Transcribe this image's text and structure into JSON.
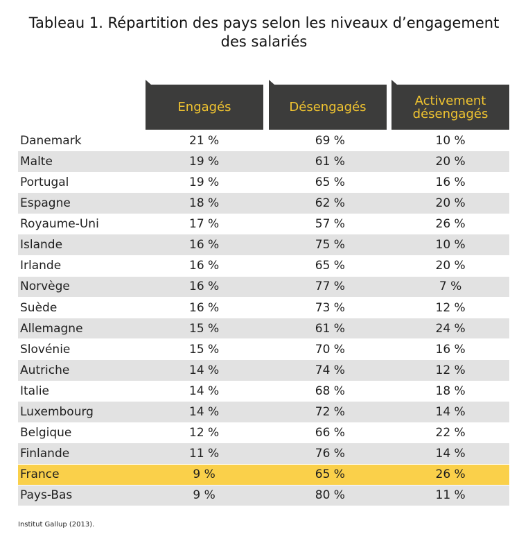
{
  "title_line1": "Tableau 1. Répartition des pays selon les niveaux d’engagement",
  "title_line2": "des salariés",
  "headers": {
    "engaged": "Engagés",
    "disengaged": "Désengagés",
    "active_line1": "Activement",
    "active_line2": "désengagés"
  },
  "colors": {
    "header_bg": "#3c3c3b",
    "header_text": "#f2c530",
    "row_alt": "#e2e2e2",
    "highlight": "#fad04a"
  },
  "rows": [
    {
      "country": "Danemark",
      "engaged": "21 %",
      "disengaged": "69 %",
      "active": "10 %"
    },
    {
      "country": "Malte",
      "engaged": "19 %",
      "disengaged": "61 %",
      "active": "20 %"
    },
    {
      "country": "Portugal",
      "engaged": "19 %",
      "disengaged": "65 %",
      "active": "16 %"
    },
    {
      "country": "Espagne",
      "engaged": "18 %",
      "disengaged": "62 %",
      "active": "20 %"
    },
    {
      "country": "Royaume-Uni",
      "engaged": "17 %",
      "disengaged": "57 %",
      "active": "26 %"
    },
    {
      "country": "Islande",
      "engaged": "16 %",
      "disengaged": "75 %",
      "active": "10 %"
    },
    {
      "country": "Irlande",
      "engaged": "16 %",
      "disengaged": "65 %",
      "active": "20 %"
    },
    {
      "country": "Norvège",
      "engaged": "16 %",
      "disengaged": "77 %",
      "active": "7 %"
    },
    {
      "country": "Suède",
      "engaged": "16 %",
      "disengaged": "73 %",
      "active": "12 %"
    },
    {
      "country": "Allemagne",
      "engaged": "15 %",
      "disengaged": "61 %",
      "active": "24 %"
    },
    {
      "country": "Slovénie",
      "engaged": "15 %",
      "disengaged": "70 %",
      "active": "16 %"
    },
    {
      "country": "Autriche",
      "engaged": "14 %",
      "disengaged": "74 %",
      "active": "12 %"
    },
    {
      "country": "Italie",
      "engaged": "14 %",
      "disengaged": "68 %",
      "active": "18 %"
    },
    {
      "country": "Luxembourg",
      "engaged": "14 %",
      "disengaged": "72 %",
      "active": "14 %"
    },
    {
      "country": "Belgique",
      "engaged": "12 %",
      "disengaged": "66 %",
      "active": "22 %"
    },
    {
      "country": "Finlande",
      "engaged": "11 %",
      "disengaged": "76 %",
      "active": "14 %"
    },
    {
      "country": "France",
      "engaged": "9 %",
      "disengaged": "65 %",
      "active": "26 %",
      "highlight": true
    },
    {
      "country": "Pays-Bas",
      "engaged": "9 %",
      "disengaged": "80 %",
      "active": "11 %"
    }
  ],
  "source": "Institut Gallup (2013)."
}
